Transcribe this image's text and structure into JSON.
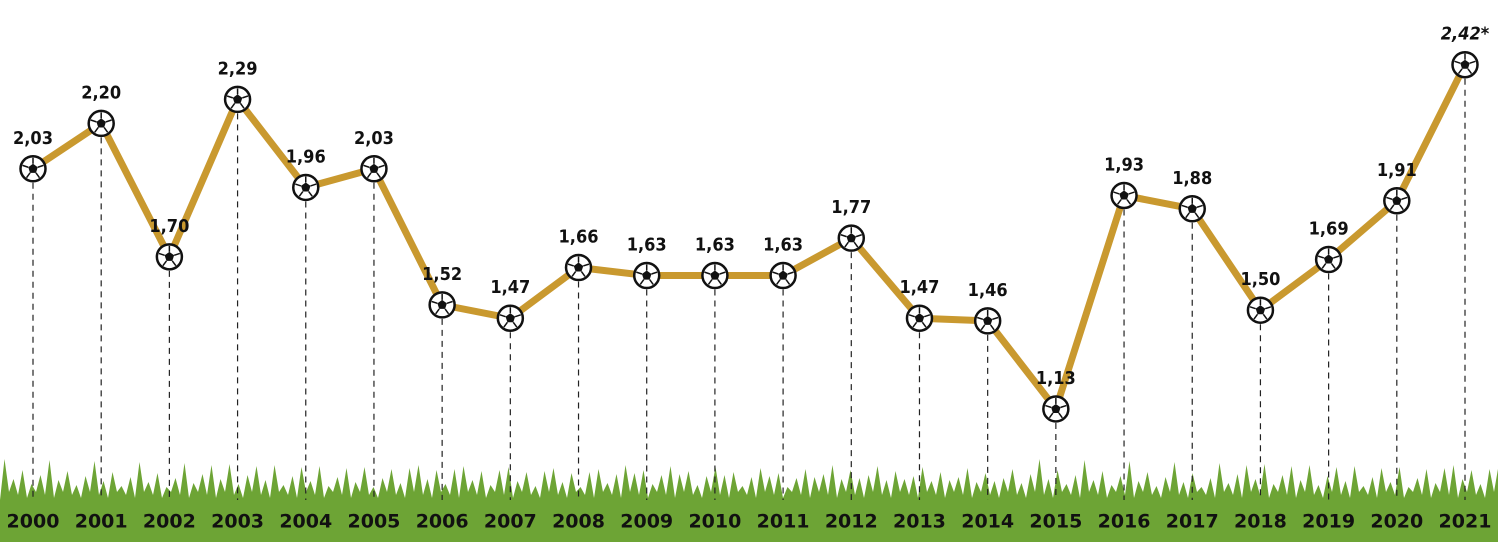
{
  "chart_data": {
    "type": "line",
    "categories": [
      "2000",
      "2001",
      "2002",
      "2003",
      "2004",
      "2005",
      "2006",
      "2007",
      "2008",
      "2009",
      "2010",
      "2011",
      "2012",
      "2013",
      "2014",
      "2015",
      "2016",
      "2017",
      "2018",
      "2019",
      "2020",
      "2021"
    ],
    "series": [
      {
        "color": "#c9992f",
        "values": [
          2.03,
          2.2,
          1.7,
          2.29,
          1.96,
          2.03,
          1.52,
          1.47,
          1.66,
          1.63,
          1.63,
          1.63,
          1.77,
          1.47,
          1.46,
          1.13,
          1.93,
          1.88,
          1.5,
          1.69,
          1.91,
          2.42
        ],
        "value_labels": [
          "2,03",
          "2,20",
          "1,70",
          "2,29",
          "1,96",
          "2,03",
          "1,52",
          "1,47",
          "1,66",
          "1,63",
          "1,63",
          "1,63",
          "1,77",
          "1,47",
          "1,46",
          "1,13",
          "1,93",
          "1,88",
          "1,50",
          "1,69",
          "1,91",
          "2,42*"
        ]
      }
    ],
    "ylim": [
      0.8,
      2.7
    ]
  }
}
